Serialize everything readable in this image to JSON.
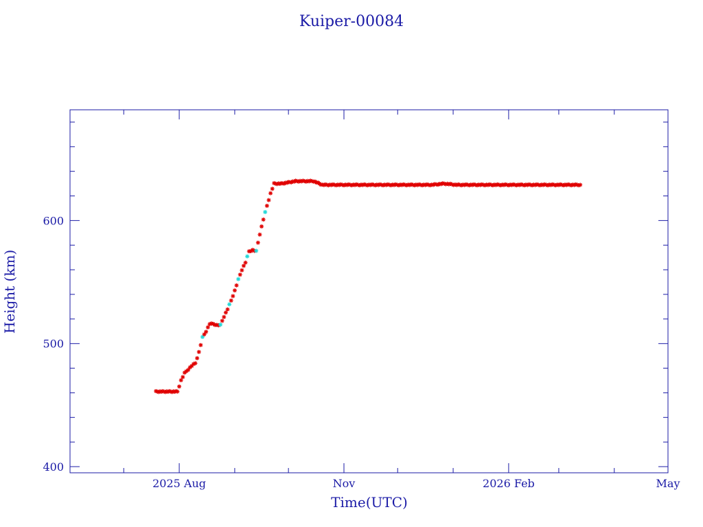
{
  "chart_data": {
    "type": "scatter",
    "title": "Kuiper-00084",
    "xlabel": "Time(UTC)",
    "ylabel": "Height (km)",
    "x_range": [
      "2025-06-01",
      "2026-05-01"
    ],
    "ylim": [
      395,
      690
    ],
    "y_major_ticks": [
      400,
      500,
      600
    ],
    "y_tick_labels": [
      "400",
      "500",
      "600"
    ],
    "x_major_ticks": [
      {
        "date": "2025-08-01",
        "label": "2025 Aug"
      },
      {
        "date": "2025-11-01",
        "label": "Nov"
      },
      {
        "date": "2026-02-01",
        "label": "2026 Feb"
      },
      {
        "date": "2026-05-01",
        "label": "May"
      }
    ],
    "grid": false,
    "colors": {
      "axes": "#1a1aa6",
      "points": "#e00000",
      "alt_points": "#20d8d8"
    },
    "series": [
      {
        "marker": "star",
        "points": [
          [
            "2025-07-19",
            461
          ],
          [
            "2025-07-22",
            461
          ],
          [
            "2025-07-25",
            461
          ],
          [
            "2025-07-28",
            461
          ],
          [
            "2025-07-31",
            461
          ],
          [
            "2025-08-02",
            470
          ],
          [
            "2025-08-04",
            476
          ],
          [
            "2025-08-06",
            479
          ],
          [
            "2025-08-08",
            482
          ],
          [
            "2025-08-10",
            484
          ],
          [
            "2025-08-12",
            493
          ],
          [
            "2025-08-14",
            505
          ],
          [
            "2025-08-16",
            510
          ],
          [
            "2025-08-18",
            516
          ],
          [
            "2025-08-20",
            516
          ],
          [
            "2025-08-22",
            515
          ],
          [
            "2025-08-24",
            515
          ],
          [
            "2025-08-26",
            522
          ],
          [
            "2025-08-28",
            528
          ],
          [
            "2025-08-30",
            535
          ],
          [
            "2025-09-01",
            543
          ],
          [
            "2025-09-03",
            552
          ],
          [
            "2025-09-05",
            560
          ],
          [
            "2025-09-07",
            566
          ],
          [
            "2025-09-09",
            575
          ],
          [
            "2025-09-11",
            576
          ],
          [
            "2025-09-13",
            575
          ],
          [
            "2025-09-15",
            589
          ],
          [
            "2025-09-17",
            601
          ],
          [
            "2025-09-19",
            612
          ],
          [
            "2025-09-21",
            622
          ],
          [
            "2025-09-23",
            630
          ],
          [
            "2025-09-27",
            630
          ],
          [
            "2025-10-01",
            631
          ],
          [
            "2025-10-05",
            632
          ],
          [
            "2025-10-10",
            632
          ],
          [
            "2025-10-15",
            632
          ],
          [
            "2025-10-20",
            629
          ],
          [
            "2025-10-25",
            629
          ],
          [
            "2025-11-01",
            629
          ],
          [
            "2025-11-08",
            629
          ],
          [
            "2025-11-15",
            629
          ],
          [
            "2025-11-22",
            629
          ],
          [
            "2025-11-29",
            629
          ],
          [
            "2025-12-06",
            629
          ],
          [
            "2025-12-13",
            629
          ],
          [
            "2025-12-20",
            629
          ],
          [
            "2025-12-27",
            630
          ],
          [
            "2026-01-03",
            629
          ],
          [
            "2026-01-10",
            629
          ],
          [
            "2026-01-17",
            629
          ],
          [
            "2026-01-24",
            629
          ],
          [
            "2026-02-01",
            629
          ],
          [
            "2026-02-08",
            629
          ],
          [
            "2026-02-15",
            629
          ],
          [
            "2026-02-22",
            629
          ],
          [
            "2026-03-01",
            629
          ],
          [
            "2026-03-08",
            629
          ],
          [
            "2026-03-13",
            629
          ]
        ]
      }
    ]
  }
}
